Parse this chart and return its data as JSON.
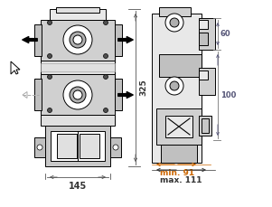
{
  "bg_color": "#ffffff",
  "line_color": "#000000",
  "dim_color_orange": "#cc6600",
  "dim_color_blue": "#336699",
  "dim_color_dark": "#333333",
  "arrow_color": "#000000",
  "dashed_color": "#999999",
  "fig_width": 3.01,
  "fig_height": 2.29,
  "dpi": 100,
  "dim_325": "325",
  "dim_145": "145",
  "dim_60": "60",
  "dim_100": "100",
  "dim_min91": "min. 91",
  "dim_max111": "max. 111"
}
